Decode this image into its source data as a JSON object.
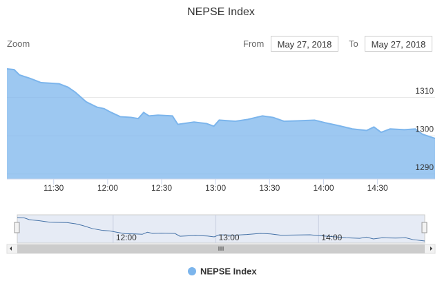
{
  "chart_data": {
    "type": "area",
    "title": "NEPSE Index",
    "x": [
      "11:04",
      "11:08",
      "11:11",
      "11:17",
      "11:23",
      "11:33",
      "11:38",
      "11:42",
      "11:48",
      "11:54",
      "11:58",
      "12:02",
      "12:07",
      "12:13",
      "12:17",
      "12:20",
      "12:23",
      "12:28",
      "12:36",
      "12:39",
      "12:48",
      "12:55",
      "12:59",
      "13:02",
      "13:11",
      "13:18",
      "13:26",
      "13:32",
      "13:38",
      "13:45",
      "13:55",
      "14:01",
      "14:08",
      "14:16",
      "14:24",
      "14:28",
      "14:32",
      "14:37",
      "14:45",
      "14:51",
      "14:55",
      "15:02"
    ],
    "series": [
      {
        "name": "NEPSE Index",
        "color": "#7cb5ec",
        "values": [
          1317.5,
          1317.3,
          1315.9,
          1315.0,
          1313.9,
          1313.6,
          1312.7,
          1311.4,
          1308.9,
          1307.5,
          1307.1,
          1306.1,
          1305.0,
          1304.8,
          1304.5,
          1306.1,
          1305.2,
          1305.4,
          1305.2,
          1303.0,
          1303.6,
          1303.2,
          1302.5,
          1304.1,
          1303.8,
          1304.3,
          1305.2,
          1304.8,
          1303.8,
          1303.9,
          1304.1,
          1303.4,
          1302.7,
          1301.8,
          1301.4,
          1302.3,
          1300.9,
          1301.8,
          1301.6,
          1301.8,
          1300.4,
          1299.3
        ]
      }
    ],
    "xlim": [
      "11:04",
      "15:02"
    ],
    "xticks": [
      "11:30",
      "12:00",
      "12:30",
      "13:00",
      "13:30",
      "14:00",
      "14:30"
    ],
    "ylim": [
      1288.7,
      1318.4
    ],
    "yticks": [
      1290,
      1300,
      1310
    ],
    "grid": true,
    "navigator_xticks": [
      "12:00",
      "13:00",
      "14:00"
    ]
  },
  "range_selector": {
    "zoom_label": "Zoom",
    "from_label": "From",
    "from_value": "May 27, 2018",
    "to_label": "To",
    "to_value": "May 27, 2018"
  }
}
